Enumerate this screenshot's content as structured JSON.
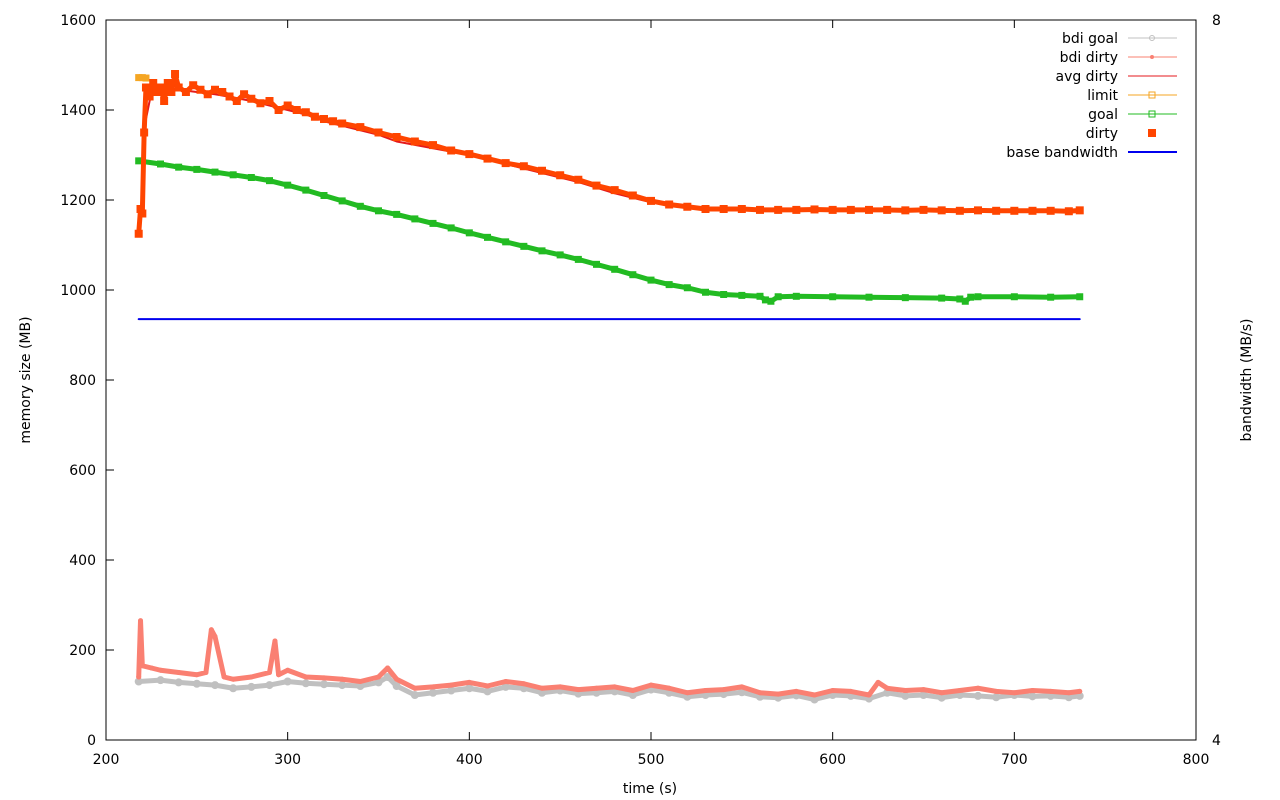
{
  "chart_data": {
    "type": "line",
    "xlabel": "time (s)",
    "ylabel": "memory size (MB)",
    "y2label": "bandwidth (MB/s)",
    "xlim": [
      200,
      800
    ],
    "ylim": [
      0,
      1600
    ],
    "y2lim": [
      4,
      8
    ],
    "xticks": [
      "200",
      "300",
      "400",
      "500",
      "600",
      "700",
      "800"
    ],
    "yticks": [
      "0",
      "200",
      "400",
      "600",
      "800",
      "1000",
      "1200",
      "1400",
      "1600"
    ],
    "y2ticks": [
      "4",
      "8"
    ],
    "grid": false,
    "legend_position": "top-right",
    "series": [
      {
        "name": "bdi goal",
        "axis": "left",
        "color": "#c0c0c0",
        "marker": "circle",
        "x": [
          218,
          230,
          240,
          250,
          260,
          270,
          280,
          290,
          300,
          310,
          320,
          330,
          340,
          350,
          355,
          360,
          370,
          380,
          390,
          400,
          410,
          420,
          430,
          440,
          450,
          460,
          470,
          480,
          490,
          500,
          510,
          520,
          530,
          540,
          550,
          560,
          570,
          580,
          590,
          600,
          610,
          620,
          630,
          640,
          650,
          660,
          670,
          680,
          690,
          700,
          710,
          720,
          730,
          736
        ],
        "y": [
          130,
          133,
          128,
          125,
          122,
          115,
          118,
          122,
          130,
          126,
          124,
          122,
          120,
          128,
          140,
          120,
          100,
          105,
          110,
          115,
          108,
          118,
          115,
          105,
          110,
          103,
          105,
          108,
          100,
          112,
          105,
          96,
          100,
          102,
          106,
          96,
          94,
          99,
          90,
          100,
          98,
          92,
          105,
          98,
          100,
          94,
          100,
          98,
          95,
          100,
          97,
          98,
          95,
          98
        ]
      },
      {
        "name": "bdi dirty",
        "axis": "left",
        "color": "#fa8072",
        "marker": "circle-small",
        "x": [
          218,
          219,
          220,
          225,
          230,
          240,
          250,
          255,
          258,
          260,
          265,
          270,
          280,
          290,
          293,
          295,
          300,
          310,
          320,
          330,
          340,
          350,
          355,
          360,
          370,
          380,
          390,
          400,
          410,
          420,
          430,
          440,
          450,
          460,
          470,
          480,
          490,
          500,
          510,
          520,
          530,
          540,
          550,
          560,
          570,
          580,
          590,
          600,
          610,
          620,
          625,
          630,
          640,
          650,
          660,
          670,
          680,
          690,
          700,
          710,
          720,
          730,
          736
        ],
        "y": [
          140,
          265,
          165,
          160,
          155,
          150,
          145,
          150,
          245,
          230,
          140,
          135,
          140,
          150,
          220,
          145,
          155,
          140,
          138,
          135,
          130,
          140,
          160,
          135,
          115,
          118,
          122,
          128,
          120,
          130,
          125,
          115,
          118,
          112,
          115,
          118,
          110,
          122,
          115,
          105,
          110,
          112,
          118,
          105,
          102,
          108,
          100,
          110,
          108,
          100,
          128,
          115,
          110,
          112,
          105,
          110,
          115,
          108,
          105,
          110,
          108,
          105,
          108
        ]
      },
      {
        "name": "avg dirty",
        "axis": "left",
        "color": "#e41a1c",
        "marker": "none",
        "x": [
          218,
          219,
          220,
          222,
          224,
          226,
          228,
          230,
          235,
          240,
          250,
          260,
          270,
          280,
          290,
          300,
          310,
          320,
          330,
          340,
          350,
          360,
          380,
          400,
          420,
          440,
          460,
          480,
          500,
          520,
          540,
          560,
          580,
          600,
          620,
          640,
          660,
          680,
          700,
          720,
          736
        ],
        "y": [
          1125,
          1150,
          1240,
          1380,
          1420,
          1445,
          1450,
          1450,
          1448,
          1445,
          1440,
          1435,
          1428,
          1420,
          1410,
          1400,
          1390,
          1375,
          1365,
          1355,
          1345,
          1330,
          1315,
          1300,
          1280,
          1260,
          1240,
          1215,
          1195,
          1185,
          1178,
          1178,
          1178,
          1178,
          1177,
          1177,
          1177,
          1177,
          1176,
          1176,
          1176
        ]
      },
      {
        "name": "limit",
        "axis": "left",
        "color": "#f5a623",
        "marker": "square",
        "x": [
          218,
          220,
          222
        ],
        "y": [
          1472,
          1472,
          1471
        ]
      },
      {
        "name": "goal",
        "axis": "left",
        "color": "#22bb22",
        "marker": "square",
        "x": [
          218,
          230,
          240,
          250,
          260,
          270,
          280,
          290,
          300,
          310,
          320,
          330,
          340,
          350,
          360,
          370,
          380,
          390,
          400,
          410,
          420,
          430,
          440,
          450,
          460,
          470,
          480,
          490,
          500,
          510,
          520,
          530,
          540,
          550,
          560,
          563,
          566,
          570,
          580,
          600,
          620,
          640,
          660,
          670,
          673,
          676,
          680,
          700,
          720,
          736
        ],
        "y": [
          1287,
          1280,
          1273,
          1268,
          1262,
          1256,
          1250,
          1243,
          1233,
          1222,
          1210,
          1198,
          1186,
          1176,
          1168,
          1158,
          1148,
          1138,
          1127,
          1117,
          1107,
          1097,
          1087,
          1078,
          1068,
          1057,
          1046,
          1034,
          1022,
          1012,
          1005,
          995,
          990,
          988,
          986,
          978,
          975,
          985,
          986,
          985,
          984,
          983,
          982,
          980,
          975,
          984,
          985,
          985,
          984,
          985
        ]
      },
      {
        "name": "dirty",
        "axis": "left",
        "color": "#ff4500",
        "marker": "square-filled",
        "x": [
          218,
          219,
          220,
          221,
          222,
          224,
          226,
          228,
          230,
          232,
          234,
          236,
          238,
          240,
          244,
          248,
          252,
          256,
          260,
          264,
          268,
          272,
          276,
          280,
          285,
          290,
          295,
          300,
          305,
          310,
          315,
          320,
          325,
          330,
          340,
          350,
          360,
          370,
          380,
          390,
          400,
          410,
          420,
          430,
          440,
          450,
          460,
          470,
          480,
          490,
          500,
          510,
          520,
          530,
          540,
          550,
          560,
          570,
          580,
          590,
          600,
          610,
          620,
          630,
          640,
          650,
          660,
          670,
          680,
          690,
          700,
          710,
          720,
          730,
          736
        ],
        "y": [
          1125,
          1180,
          1170,
          1350,
          1450,
          1430,
          1460,
          1440,
          1450,
          1420,
          1460,
          1440,
          1480,
          1450,
          1440,
          1455,
          1445,
          1435,
          1445,
          1440,
          1430,
          1420,
          1435,
          1425,
          1415,
          1420,
          1400,
          1410,
          1400,
          1395,
          1385,
          1380,
          1375,
          1370,
          1362,
          1350,
          1340,
          1330,
          1322,
          1310,
          1302,
          1292,
          1282,
          1275,
          1265,
          1255,
          1245,
          1232,
          1222,
          1210,
          1198,
          1190,
          1185,
          1180,
          1180,
          1180,
          1178,
          1178,
          1178,
          1179,
          1178,
          1178,
          1178,
          1178,
          1177,
          1178,
          1177,
          1176,
          1177,
          1176,
          1176,
          1176,
          1176,
          1175,
          1177
        ]
      },
      {
        "name": "base bandwidth",
        "axis": "right",
        "color": "#0000ee",
        "marker": "none",
        "x": [
          218,
          736
        ],
        "y": [
          6.338,
          6.338
        ]
      }
    ]
  }
}
